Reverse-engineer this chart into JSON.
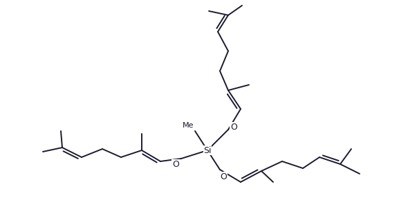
{
  "background": "#ffffff",
  "line_color": "#1a1a2e",
  "line_width": 1.4,
  "dbo": 4.0,
  "figsize": [
    5.77,
    3.06
  ],
  "dpi": 100,
  "xlim": [
    0,
    577
  ],
  "ylim": [
    0,
    306
  ]
}
